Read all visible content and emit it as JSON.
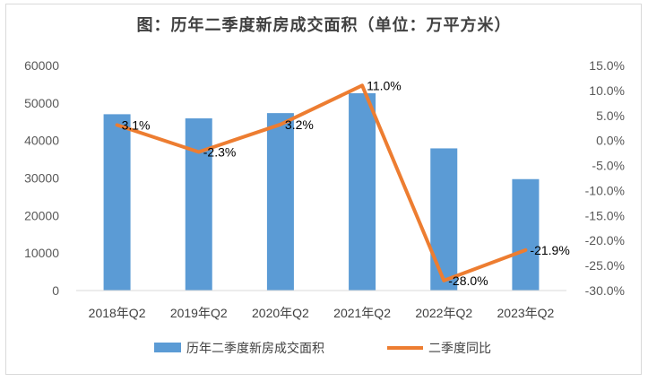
{
  "chart_data": {
    "type": "bar",
    "title": "图：历年二季度新房成交面积（单位：万平方米）",
    "categories": [
      "2018年Q2",
      "2019年Q2",
      "2020年Q2",
      "2021年Q2",
      "2022年Q2",
      "2023年Q2"
    ],
    "series": [
      {
        "name": "历年二季度新房成交面积",
        "type": "bar",
        "axis": "left",
        "color": "#5b9bd5",
        "values": [
          47000,
          45900,
          47300,
          52600,
          37900,
          29700
        ]
      },
      {
        "name": "二季度同比",
        "type": "line",
        "axis": "right",
        "color": "#ed7d31",
        "values": [
          3.1,
          -2.3,
          3.2,
          11.0,
          -28.0,
          -21.9
        ],
        "labels": [
          "3.1%",
          "-2.3%",
          "3.2%",
          "11.0%",
          "-28.0%",
          "-21.9%"
        ]
      }
    ],
    "y_left": {
      "ylim": [
        0,
        60000
      ],
      "ticks": [
        "0",
        "10000",
        "20000",
        "30000",
        "40000",
        "50000",
        "60000"
      ]
    },
    "y_right": {
      "ylim": [
        -30,
        15
      ],
      "ticks": [
        "-30.0%",
        "-25.0%",
        "-20.0%",
        "-15.0%",
        "-10.0%",
        "-5.0%",
        "0.0%",
        "5.0%",
        "10.0%",
        "15.0%"
      ]
    },
    "grid": false,
    "legend_position": "bottom"
  }
}
